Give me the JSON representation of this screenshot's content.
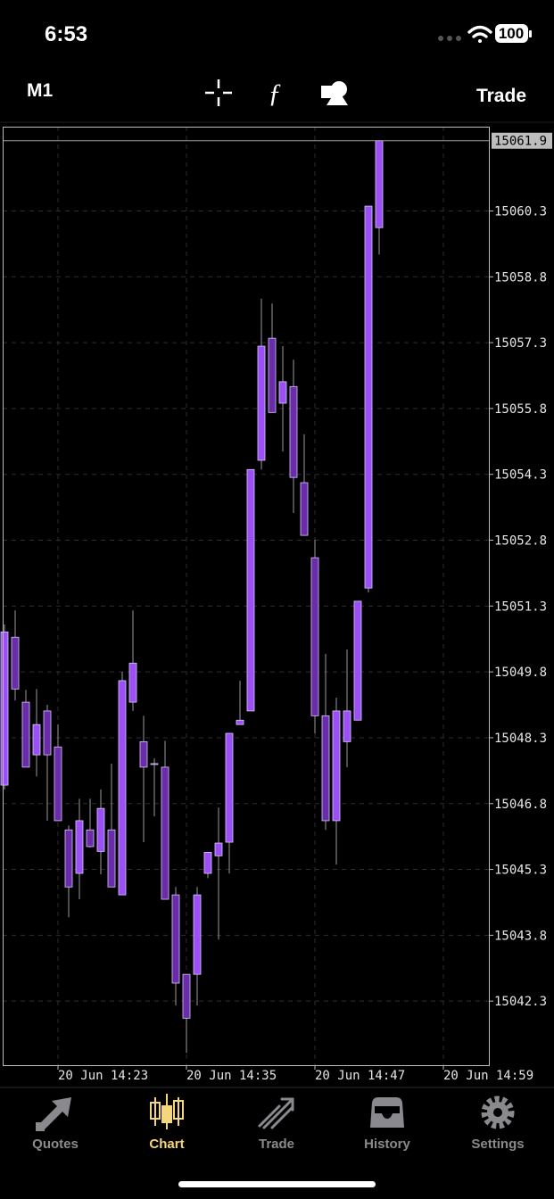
{
  "status_bar": {
    "time": "6:53",
    "battery": "100"
  },
  "toolbar": {
    "timeframe": "M1",
    "trade": "Trade"
  },
  "chart_data": {
    "type": "candlestick",
    "categories": [
      null,
      null,
      null,
      null,
      null,
      "20 Jun 14:23",
      null,
      null,
      null,
      null,
      null,
      null,
      null,
      null,
      null,
      null,
      null,
      "20 Jun 14:35",
      null,
      null,
      null,
      null,
      null,
      null,
      null,
      null,
      null,
      null,
      null,
      "20 Jun 14:47",
      null,
      null,
      null,
      null,
      null,
      null,
      null,
      null,
      null,
      null,
      null,
      "20 Jun 14:59",
      null,
      null,
      null,
      null
    ],
    "series": [
      {
        "open": [
          15047.22,
          15050.59,
          15049.11,
          15047.91,
          15048.91,
          15048.09,
          15046.2,
          15045.21,
          15046.2,
          15045.71,
          15046.2,
          15044.72,
          15049.11,
          15048.21,
          15047.71,
          15047.63,
          15044.72,
          15042.91,
          15042.91,
          15045.21,
          15045.61,
          15045.92,
          15048.6,
          15048.91,
          15054.62,
          15057.4,
          15055.92,
          15056.3,
          15054.11,
          15052.4,
          15048.8,
          15046.41,
          15048.21,
          15048.7,
          15051.71,
          15059.92,
          null,
          null,
          null,
          null,
          null,
          null,
          null,
          null,
          null,
          null
        ],
        "high": [
          15050.88,
          15051.2,
          15049.39,
          15049.41,
          15049.05,
          15048.6,
          15046.3,
          15046.91,
          15046.91,
          15047.12,
          15047.71,
          15049.8,
          15051.2,
          15048.8,
          15047.83,
          15048.23,
          15044.9,
          15042.91,
          15044.9,
          15045.69,
          15046.71,
          15048.4,
          15049.6,
          15054.41,
          15058.3,
          15058.19,
          15057.22,
          15056.91,
          15055.21,
          15052.81,
          15050.21,
          15049.21,
          15050.31,
          15051.41,
          15060.41,
          15061.91,
          null,
          null,
          null,
          null,
          null,
          null,
          null,
          null,
          null,
          null
        ],
        "low": [
          15047.12,
          15049.15,
          15047.63,
          15047.42,
          15046.41,
          15046.41,
          15044.21,
          15044.62,
          15045.8,
          15045.19,
          15044.9,
          15044.72,
          15048.91,
          15045.92,
          15046.51,
          15044.62,
          15042.2,
          15041.12,
          15042.2,
          15045.1,
          15043.7,
          15045.21,
          15048.6,
          15048.91,
          15054.41,
          15055.71,
          15054.82,
          15053.42,
          15052.91,
          15048.4,
          15046.2,
          15045.41,
          15047.63,
          15048.7,
          15051.61,
          15059.31,
          null,
          null,
          null,
          null,
          null,
          null,
          null,
          null,
          null,
          null
        ],
        "close": [
          15050.71,
          15049.41,
          15047.63,
          15048.6,
          15047.91,
          15046.41,
          15044.9,
          15046.41,
          15045.82,
          15046.69,
          15044.9,
          15049.6,
          15050.0,
          15047.63,
          15047.69,
          15044.62,
          15042.71,
          15041.91,
          15044.72,
          15045.69,
          15045.9,
          15048.4,
          15048.7,
          15054.41,
          15057.22,
          15055.71,
          15056.41,
          15054.23,
          15052.91,
          15048.8,
          15046.41,
          15048.91,
          15048.91,
          15051.41,
          15060.41,
          15061.9,
          null,
          null,
          null,
          null,
          null,
          null,
          null,
          null,
          null,
          null
        ]
      }
    ],
    "up_color": "#9b4ff5",
    "down_color": "#6a2ca8",
    "ylim": [
      15040.82,
      15062.22
    ],
    "yticks": [
      15042.3,
      15043.8,
      15045.3,
      15046.8,
      15048.3,
      15049.8,
      15051.3,
      15052.8,
      15054.3,
      15055.8,
      15057.3,
      15058.8,
      15060.3
    ],
    "current_price": 15061.9,
    "grid": true
  },
  "tab_bar": {
    "tabs": [
      "Quotes",
      "Chart",
      "Trade",
      "History",
      "Settings"
    ],
    "active": 1
  }
}
